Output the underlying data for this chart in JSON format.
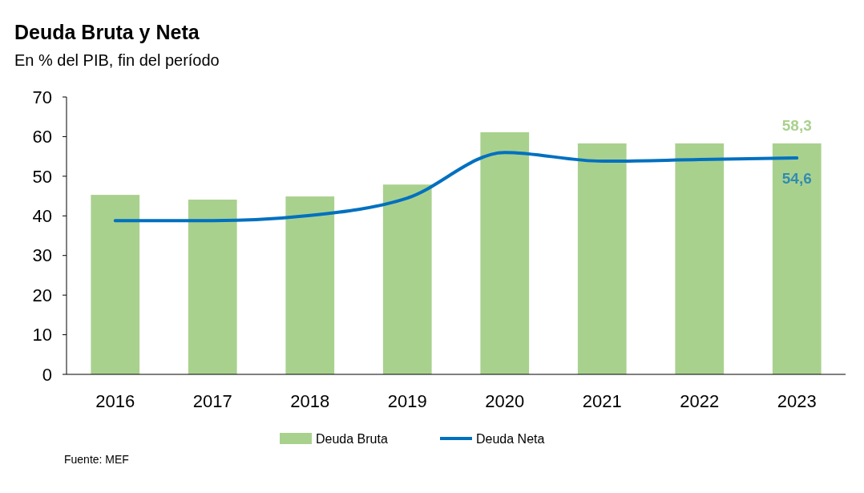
{
  "chart_data": {
    "type": "bar",
    "title": "Deuda Bruta y Neta",
    "subtitle": "En % del PIB, fin del período",
    "categories": [
      "2016",
      "2017",
      "2018",
      "2019",
      "2020",
      "2021",
      "2022",
      "2023"
    ],
    "series": [
      {
        "name": "Deuda Bruta",
        "color": "#a9d18e",
        "values": [
          45.3,
          44.1,
          44.9,
          47.9,
          61.1,
          58.3,
          58.3,
          58.3
        ],
        "value_labels": [
          null,
          null,
          null,
          null,
          null,
          null,
          null,
          "58,3"
        ]
      },
      {
        "name": "Deuda Neta",
        "type": "line",
        "color": "#0070c0",
        "values": [
          38.8,
          38.8,
          40.1,
          44.5,
          56.0,
          53.8,
          54.2,
          54.6
        ],
        "value_labels": [
          null,
          null,
          null,
          null,
          null,
          null,
          null,
          "54,6"
        ]
      }
    ],
    "ylim": [
      0,
      70
    ],
    "yticks": [
      0,
      10,
      20,
      30,
      40,
      50,
      60,
      70
    ],
    "grid": false,
    "legend": "bottom",
    "annotations": [
      "Fuente: MEF"
    ]
  }
}
